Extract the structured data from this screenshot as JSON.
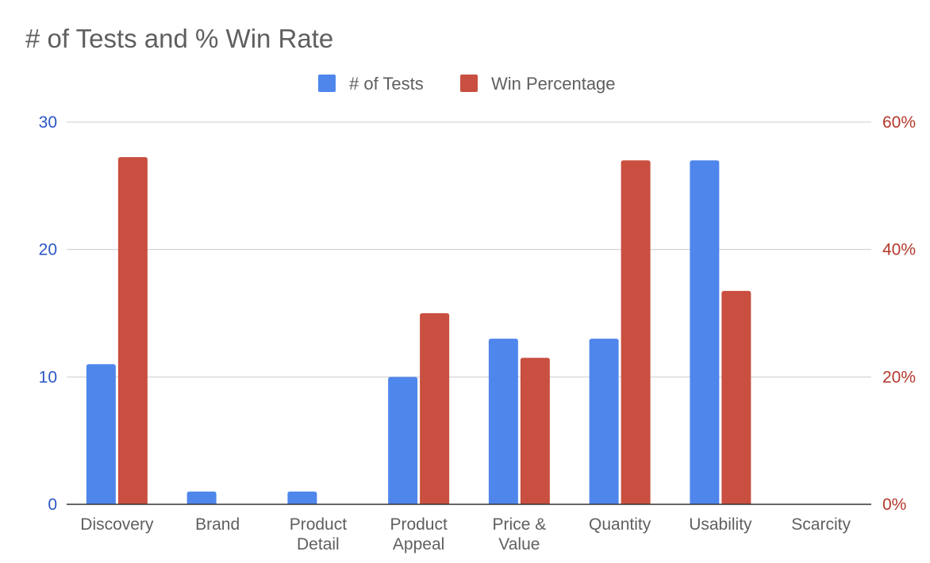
{
  "chart_data": {
    "type": "bar",
    "title": "# of Tests and % Win Rate",
    "categories": [
      [
        "Discovery"
      ],
      [
        "Brand"
      ],
      [
        "Product",
        "Detail"
      ],
      [
        "Product",
        "Appeal"
      ],
      [
        "Price &",
        "Value"
      ],
      [
        "Quantity"
      ],
      [
        "Usability"
      ],
      [
        "Scarcity"
      ]
    ],
    "series": [
      {
        "name": "# of Tests",
        "axis": "left",
        "color": "#4f86ec",
        "values": [
          11,
          1,
          1,
          10,
          13,
          13,
          27,
          0
        ]
      },
      {
        "name": "Win Percentage",
        "axis": "right",
        "color": "#c94f40",
        "values": [
          54.5,
          0,
          0,
          30,
          23,
          54,
          33.5,
          0
        ]
      }
    ],
    "y_left": {
      "ylim": [
        0,
        30
      ],
      "ticks": [
        "0",
        "10",
        "20",
        "30"
      ],
      "color": "#2a56c6"
    },
    "y_right": {
      "ylim": [
        0,
        60
      ],
      "ticks": [
        "0%",
        "20%",
        "40%",
        "60%"
      ],
      "color": "#b3382c"
    },
    "legend": "top-center",
    "grid": true
  }
}
